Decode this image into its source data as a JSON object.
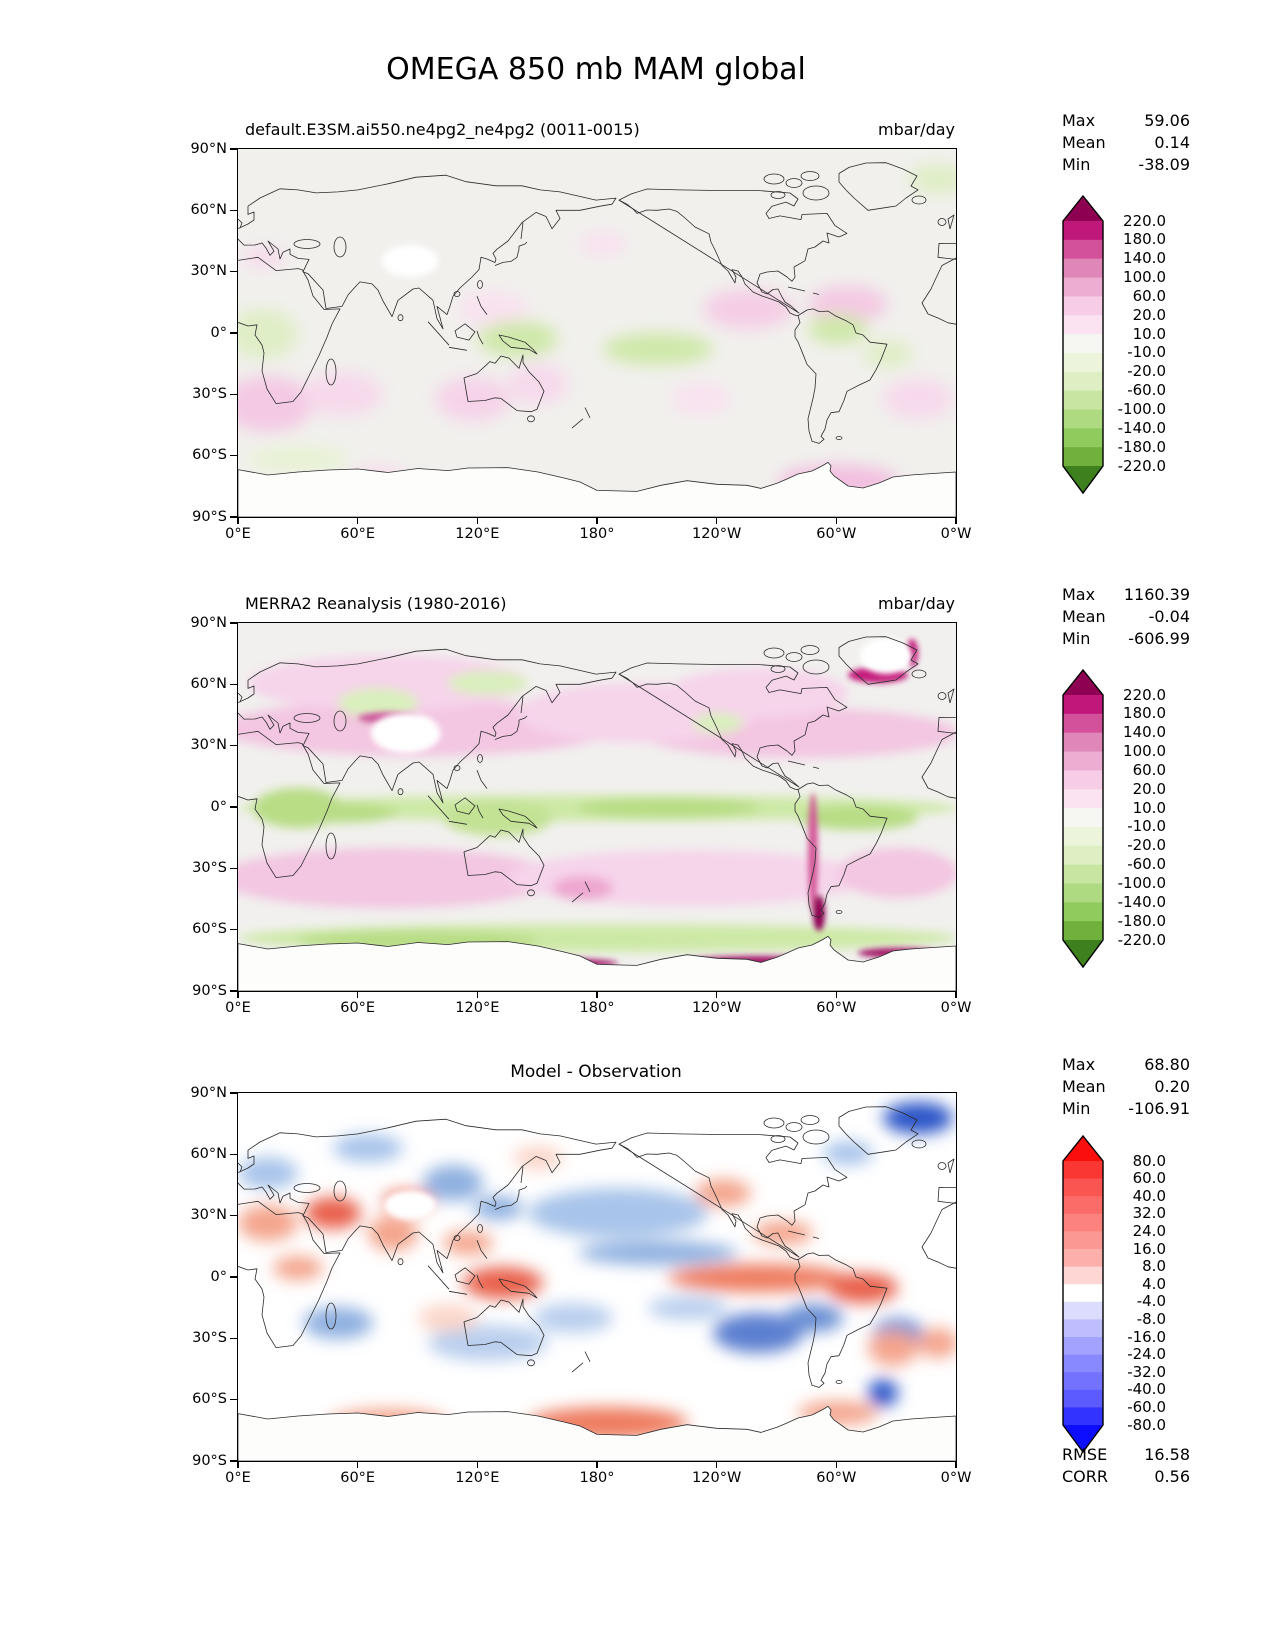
{
  "title": "OMEGA 850 mb MAM global",
  "axes": {
    "y_ticks": [
      "90°N",
      "60°N",
      "30°N",
      "0°",
      "30°S",
      "60°S",
      "90°S"
    ],
    "x_ticks": [
      "0°E",
      "60°E",
      "120°E",
      "180°",
      "120°W",
      "60°W",
      "0°W"
    ]
  },
  "panels": [
    {
      "subtitle": "default.E3SM.ai550.ne4pg2_ne4pg2 (0011-0015)",
      "units": "mbar/day",
      "stats": [
        {
          "label": "Max",
          "value": "59.06"
        },
        {
          "label": "Mean",
          "value": "0.14"
        },
        {
          "label": "Min",
          "value": "-38.09"
        }
      ],
      "colorbar": {
        "ticks": [
          "220.0",
          "180.0",
          "140.0",
          "100.0",
          "60.0",
          "20.0",
          "10.0",
          "-10.0",
          "-20.0",
          "-60.0",
          "-100.0",
          "-140.0",
          "-180.0",
          "-220.0"
        ],
        "colors": [
          "#8e0152",
          "#c0177a",
          "#d3519b",
          "#e087ba",
          "#edadd3",
          "#f6cce6",
          "#fbe3f1",
          "#f6f6f3",
          "#ecf4dc",
          "#ddefc3",
          "#c8e5a2",
          "#aeda82",
          "#90cb5d",
          "#6fb13c",
          "#3d801d"
        ]
      }
    },
    {
      "subtitle": "MERRA2 Reanalysis (1980-2016)",
      "units": "mbar/day",
      "stats": [
        {
          "label": "Max",
          "value": "1160.39"
        },
        {
          "label": "Mean",
          "value": "-0.04"
        },
        {
          "label": "Min",
          "value": "-606.99"
        }
      ],
      "colorbar": {
        "ticks": [
          "220.0",
          "180.0",
          "140.0",
          "100.0",
          "60.0",
          "20.0",
          "10.0",
          "-10.0",
          "-20.0",
          "-60.0",
          "-100.0",
          "-140.0",
          "-180.0",
          "-220.0"
        ],
        "colors": [
          "#8e0152",
          "#c0177a",
          "#d3519b",
          "#e087ba",
          "#edadd3",
          "#f6cce6",
          "#fbe3f1",
          "#f6f6f3",
          "#ecf4dc",
          "#ddefc3",
          "#c8e5a2",
          "#aeda82",
          "#90cb5d",
          "#6fb13c",
          "#3d801d"
        ]
      }
    },
    {
      "title": "Model - Observation",
      "stats": [
        {
          "label": "Max",
          "value": "68.80"
        },
        {
          "label": "Mean",
          "value": "0.20"
        },
        {
          "label": "Min",
          "value": "-106.91"
        }
      ],
      "colorbar": {
        "ticks": [
          "80.0",
          "60.0",
          "40.0",
          "32.0",
          "24.0",
          "16.0",
          "8.0",
          "4.0",
          "-4.0",
          "-8.0",
          "-16.0",
          "-24.0",
          "-32.0",
          "-40.0",
          "-60.0",
          "-80.0"
        ],
        "colors": [
          "#fb0f0c",
          "#fb3734",
          "#fb5552",
          "#fb6b67",
          "#fc827e",
          "#fc9894",
          "#fdafab",
          "#fed7d5",
          "#ffffff",
          "#dcdcff",
          "#bebeff",
          "#a3a3ff",
          "#8989ff",
          "#7272ff",
          "#5b5bff",
          "#3333ff",
          "#0d0dff"
        ]
      },
      "metrics": [
        {
          "label": "RMSE",
          "value": "16.58"
        },
        {
          "label": "CORR",
          "value": "0.56"
        }
      ]
    }
  ],
  "chart_data": [
    {
      "type": "filled-contour-map",
      "projection": "equirectangular",
      "variable": "OMEGA 850 mb",
      "season": "MAM",
      "region": "global",
      "title": "default.E3SM.ai550.ne4pg2_ne4pg2 (0011-0015)",
      "units": "mbar/day",
      "lon_range": [
        0,
        360
      ],
      "lat_range": [
        -90,
        90
      ],
      "stats": {
        "max": 59.06,
        "mean": 0.14,
        "min": -38.09
      },
      "contour_levels": [
        -220,
        -180,
        -140,
        -100,
        -60,
        -20,
        -10,
        10,
        20,
        60,
        100,
        140,
        180,
        220
      ],
      "colormap": "PiYG reversed (magenta positive, green negative)"
    },
    {
      "type": "filled-contour-map",
      "projection": "equirectangular",
      "variable": "OMEGA 850 mb",
      "season": "MAM",
      "region": "global",
      "title": "MERRA2 Reanalysis (1980-2016)",
      "units": "mbar/day",
      "lon_range": [
        0,
        360
      ],
      "lat_range": [
        -90,
        90
      ],
      "stats": {
        "max": 1160.39,
        "mean": -0.04,
        "min": -606.99
      },
      "contour_levels": [
        -220,
        -180,
        -140,
        -100,
        -60,
        -20,
        -10,
        10,
        20,
        60,
        100,
        140,
        180,
        220
      ],
      "colormap": "PiYG reversed (magenta positive, green negative)"
    },
    {
      "type": "filled-contour-map",
      "projection": "equirectangular",
      "variable": "OMEGA 850 mb difference",
      "season": "MAM",
      "region": "global",
      "title": "Model - Observation",
      "lon_range": [
        0,
        360
      ],
      "lat_range": [
        -90,
        90
      ],
      "stats": {
        "max": 68.8,
        "mean": 0.2,
        "min": -106.91
      },
      "contour_levels": [
        -80,
        -60,
        -40,
        -32,
        -24,
        -16,
        -8,
        -4,
        4,
        8,
        16,
        24,
        32,
        40,
        60,
        80
      ],
      "colormap": "bwr (red positive, blue negative)",
      "metrics": {
        "rmse": 16.58,
        "corr": 0.56
      }
    }
  ]
}
